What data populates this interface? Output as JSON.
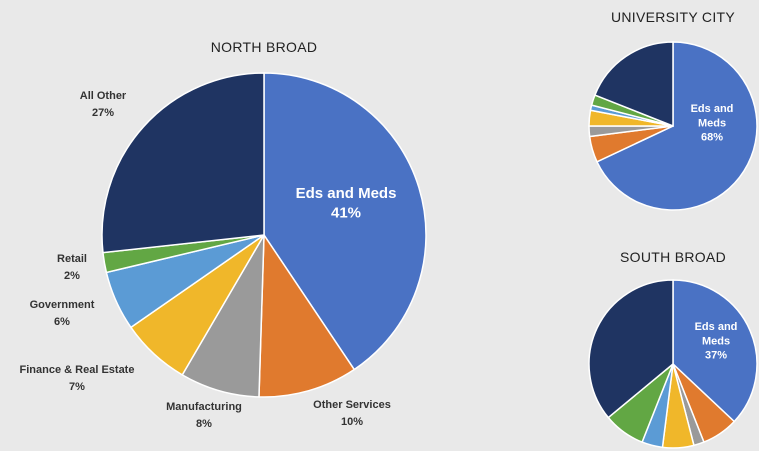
{
  "chart_data": [
    {
      "type": "pie",
      "title": "NORTH BROAD",
      "slices": [
        {
          "label": "Eds and Meds",
          "value": 41,
          "value_label": "41%",
          "color": "#4a72c4"
        },
        {
          "label": "Other Services",
          "value": 10,
          "value_label": "10%",
          "color": "#e07a2e"
        },
        {
          "label": "Manufacturing",
          "value": 8,
          "value_label": "8%",
          "color": "#9a9a9a"
        },
        {
          "label": "Finance & Real Estate",
          "value": 7,
          "value_label": "7%",
          "color": "#f0b72a"
        },
        {
          "label": "Government",
          "value": 6,
          "value_label": "6%",
          "color": "#5b9bd5"
        },
        {
          "label": "Retail",
          "value": 2,
          "value_label": "2%",
          "color": "#62a744"
        },
        {
          "label": "All Other",
          "value": 27,
          "value_label": "27%",
          "color": "#1f3462"
        }
      ]
    },
    {
      "type": "pie",
      "title": "UNIVERSITY CITY",
      "slices": [
        {
          "label": "Eds and Meds",
          "value": 68,
          "value_label": "68%",
          "color": "#4a72c4"
        },
        {
          "label": "Other Services",
          "value": 5,
          "color": "#e07a2e"
        },
        {
          "label": "Manufacturing",
          "value": 2,
          "color": "#9a9a9a"
        },
        {
          "label": "Finance & Real Estate",
          "value": 3,
          "color": "#f0b72a"
        },
        {
          "label": "Government",
          "value": 1,
          "color": "#5b9bd5"
        },
        {
          "label": "Retail",
          "value": 2,
          "color": "#62a744"
        },
        {
          "label": "All Other",
          "value": 19,
          "color": "#1f3462"
        }
      ]
    },
    {
      "type": "pie",
      "title": "SOUTH BROAD",
      "slices": [
        {
          "label": "Eds and Meds",
          "value": 37,
          "value_label": "37%",
          "color": "#4a72c4"
        },
        {
          "label": "Other Services",
          "value": 7,
          "color": "#e07a2e"
        },
        {
          "label": "Manufacturing",
          "value": 2,
          "color": "#9a9a9a"
        },
        {
          "label": "Finance & Real Estate",
          "value": 6,
          "color": "#f0b72a"
        },
        {
          "label": "Government",
          "value": 4,
          "color": "#5b9bd5"
        },
        {
          "label": "Retail",
          "value": 8,
          "color": "#62a744"
        },
        {
          "label": "All Other",
          "value": 36,
          "color": "#1f3462"
        }
      ]
    }
  ]
}
